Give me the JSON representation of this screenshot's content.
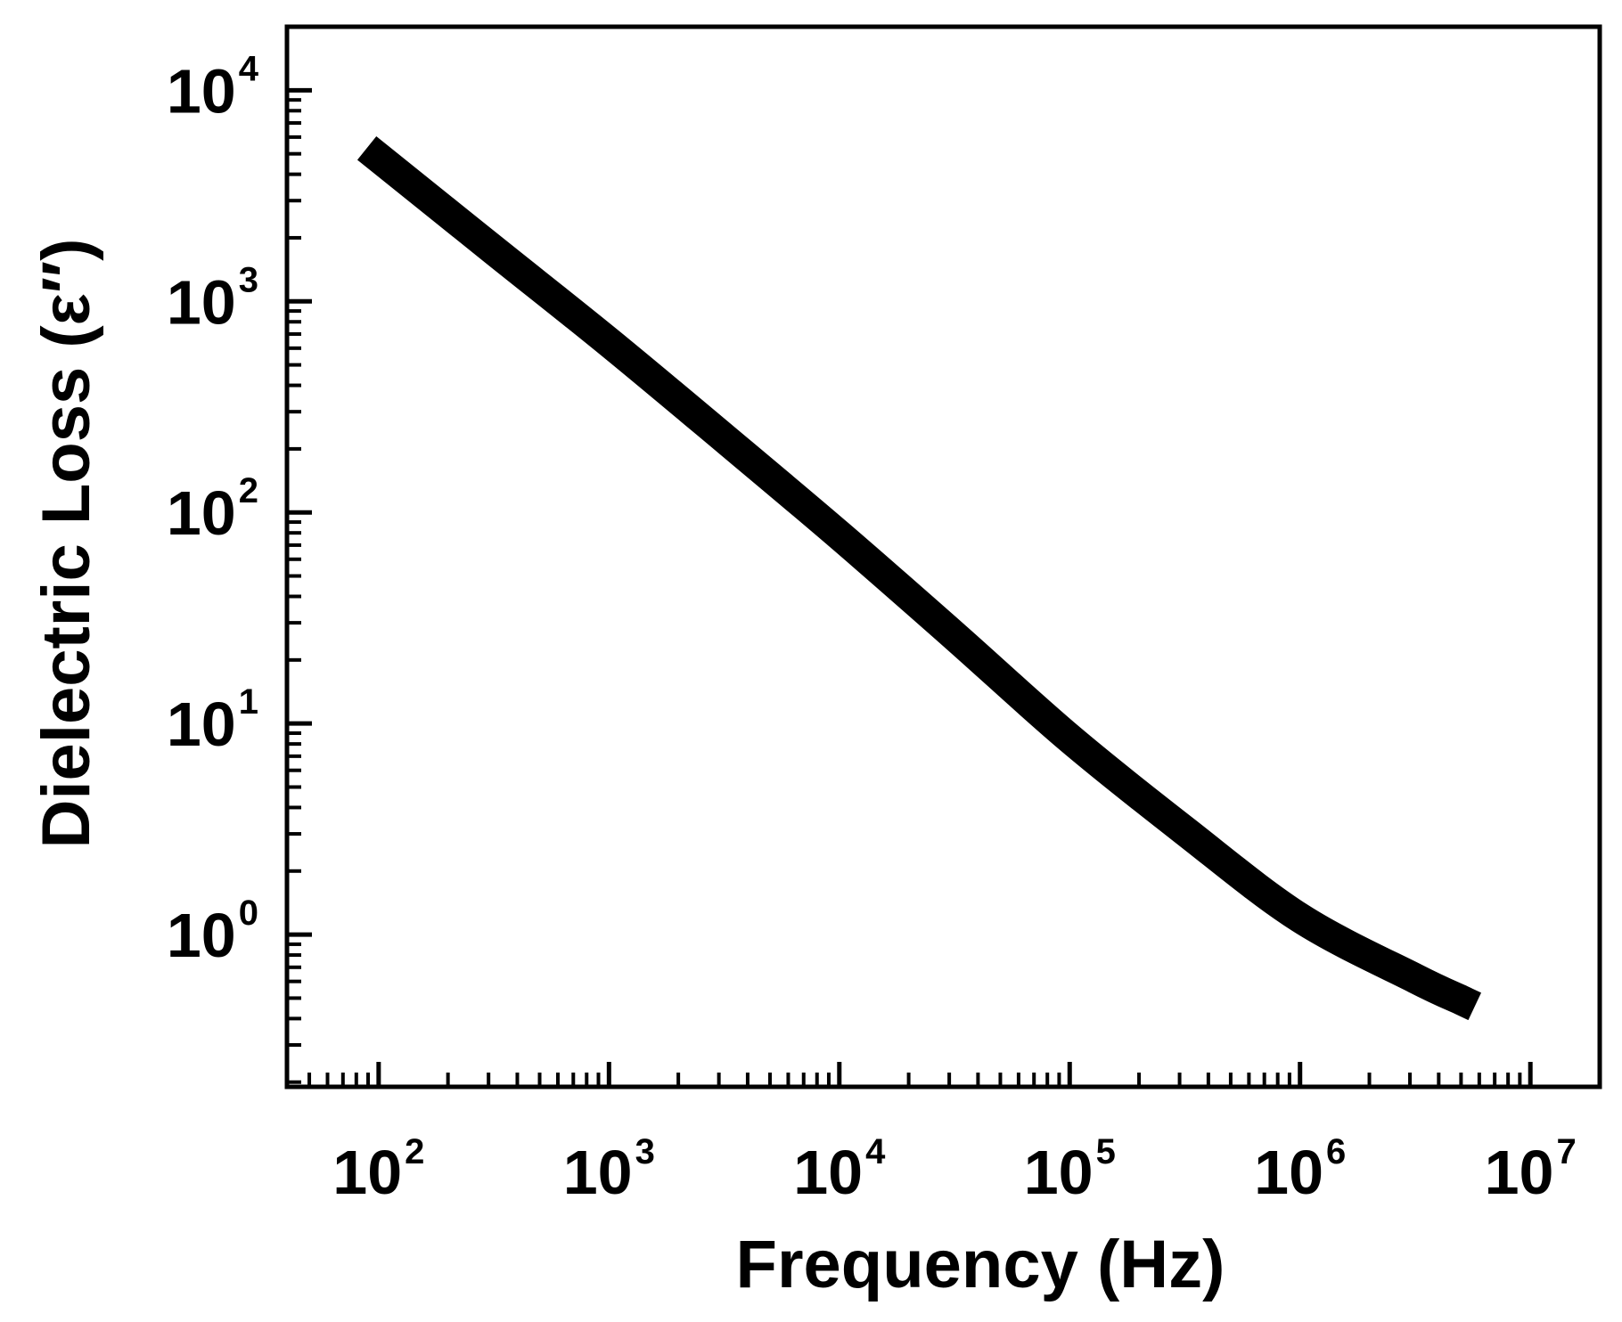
{
  "chart_data": {
    "type": "line",
    "title": "",
    "xlabel": "Frequency (Hz)",
    "ylabel": "Dielectric Loss (ε″)",
    "x_scale": "log",
    "y_scale": "log",
    "xlim": [
      40,
      20000000
    ],
    "ylim": [
      0.19,
      20000
    ],
    "x_tick_labels": [
      {
        "value": 100,
        "base": "10",
        "exp": "2"
      },
      {
        "value": 1000,
        "base": "10",
        "exp": "3"
      },
      {
        "value": 10000,
        "base": "10",
        "exp": "4"
      },
      {
        "value": 100000,
        "base": "10",
        "exp": "5"
      },
      {
        "value": 1000000,
        "base": "10",
        "exp": "6"
      },
      {
        "value": 10000000,
        "base": "10",
        "exp": "7"
      }
    ],
    "y_tick_labels": [
      {
        "value": 1,
        "base": "10",
        "exp": "0"
      },
      {
        "value": 10,
        "base": "10",
        "exp": "1"
      },
      {
        "value": 100,
        "base": "10",
        "exp": "2"
      },
      {
        "value": 1000,
        "base": "10",
        "exp": "3"
      },
      {
        "value": 10000,
        "base": "10",
        "exp": "4"
      }
    ],
    "grid": false,
    "legend": "none",
    "series": [
      {
        "color": "#000000",
        "x": [
          100,
          316,
          1000,
          3162,
          10000,
          31623,
          100000,
          316228,
          1000000,
          3162278,
          5000000
        ],
        "y": [
          4800,
          1750,
          640,
          225,
          78,
          26,
          8.5,
          3.1,
          1.2,
          0.62,
          0.49
        ]
      }
    ]
  }
}
